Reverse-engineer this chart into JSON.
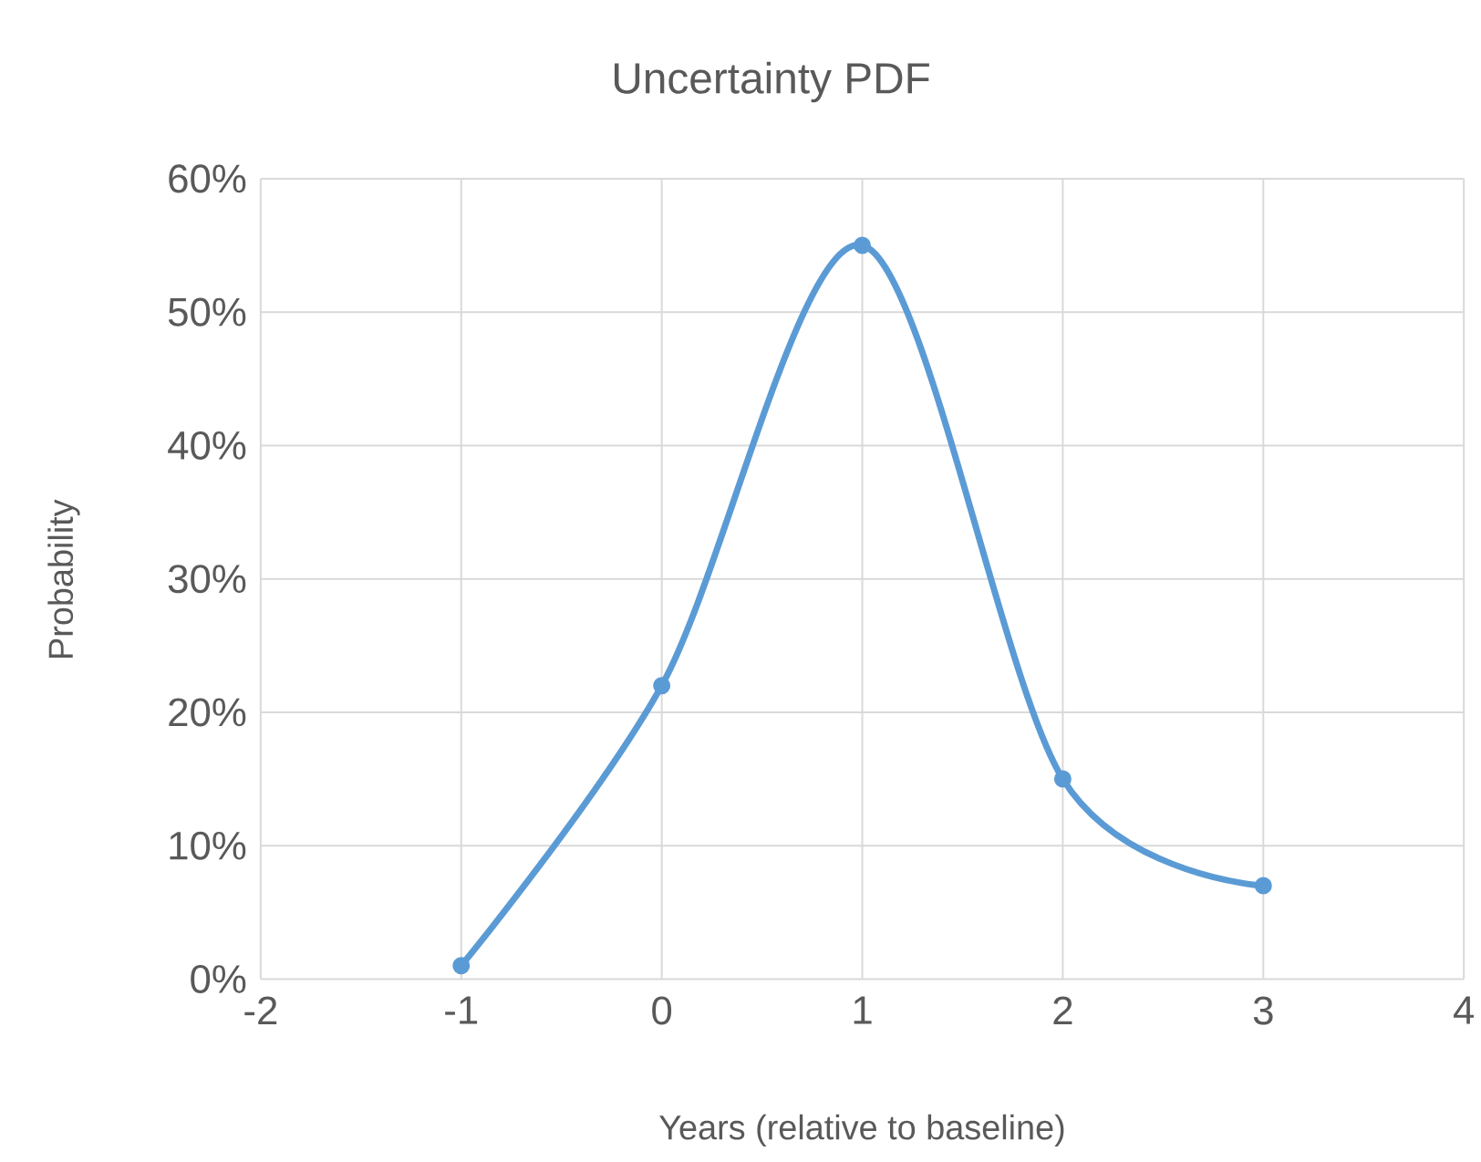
{
  "chart_data": {
    "type": "line",
    "title": "Uncertainty PDF",
    "xlabel": "Years (relative to baseline)",
    "ylabel": "Probability",
    "x": [
      -1,
      0,
      1,
      2,
      3
    ],
    "series": [
      {
        "color": "#5b9bd5",
        "values": [
          1,
          22,
          55,
          15,
          7
        ]
      }
    ],
    "xlim": [
      -2,
      4
    ],
    "xticks": [
      -2,
      -1,
      0,
      1,
      2,
      3,
      4
    ],
    "ylim": [
      0,
      60
    ],
    "yticks": [
      {
        "value": 0,
        "label": "0%"
      },
      {
        "value": 10,
        "label": "10%"
      },
      {
        "value": 20,
        "label": "20%"
      },
      {
        "value": 30,
        "label": "30%"
      },
      {
        "value": 40,
        "label": "40%"
      },
      {
        "value": 50,
        "label": "50%"
      },
      {
        "value": 60,
        "label": "60%"
      }
    ],
    "grid": true,
    "marker": "circle",
    "line_style": "solid"
  }
}
